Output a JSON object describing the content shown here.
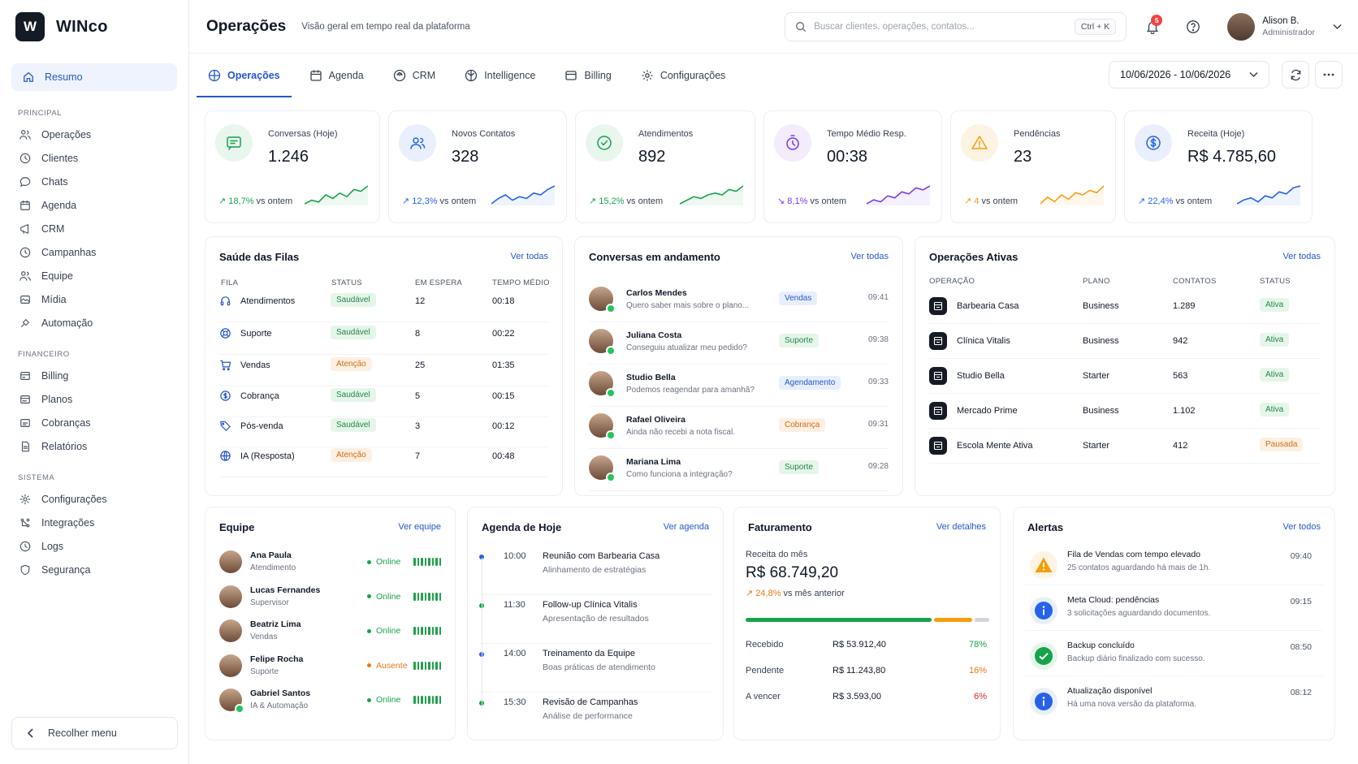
{
  "brand": {
    "logo_letter": "W",
    "name": "WINco"
  },
  "sidebar": {
    "active": "Resumo",
    "sections": [
      {
        "title": "PRINCIPAL",
        "items": [
          "Operações",
          "Clientes",
          "Chats",
          "Agenda",
          "CRM",
          "Campanhas",
          "Equipe",
          "Mídia",
          "Automação"
        ]
      },
      {
        "title": "FINANCEIRO",
        "items": [
          "Billing",
          "Planos",
          "Cobranças",
          "Relatórios"
        ]
      },
      {
        "title": "SISTEMA",
        "items": [
          "Configurações",
          "Integrações",
          "Logs",
          "Segurança"
        ]
      }
    ],
    "collapse_label": "Recolher menu"
  },
  "header": {
    "title": "Operações",
    "subtitle": "Visão geral em tempo real da plataforma",
    "search_placeholder": "Buscar clientes, operações, contatos...",
    "shortcut": "Ctrl + K",
    "notif_count": "5",
    "user_name": "Alison B.",
    "user_role": "Administrador"
  },
  "tabs": [
    "Operações",
    "Agenda",
    "CRM",
    "Intelligence",
    "Billing",
    "Configurações"
  ],
  "date_range": "10/06/2026 - 10/06/2026",
  "kpis": [
    {
      "label": "Conversas (Hoje)",
      "value": "1.246",
      "change": "18,7%",
      "vs": "vs ontem",
      "color": "#16a34a",
      "bg": "#e9f6ee",
      "icon": "chat-icon",
      "dir": "up",
      "spark": [
        4,
        6,
        5,
        9,
        7,
        10,
        8,
        12,
        11,
        14
      ]
    },
    {
      "label": "Novos Contatos",
      "value": "328",
      "change": "12,3%",
      "vs": "vs ontem",
      "color": "#2563eb",
      "bg": "#e9effc",
      "icon": "users-icon",
      "dir": "up",
      "spark": [
        3,
        6,
        8,
        5,
        7,
        6,
        9,
        8,
        11,
        13
      ]
    },
    {
      "label": "Atendimentos",
      "value": "892",
      "change": "15,2%",
      "vs": "vs ontem",
      "color": "#16a34a",
      "bg": "#e9f6ee",
      "icon": "check-circle-icon",
      "dir": "up",
      "spark": [
        3,
        5,
        7,
        6,
        8,
        9,
        8,
        11,
        10,
        13
      ]
    },
    {
      "label": "Tempo Médio Resp.",
      "value": "00:38",
      "change": "8,1%",
      "vs": "vs ontem",
      "color": "#7c3aed",
      "bg": "#f2ecfd",
      "icon": "clock-icon",
      "dir": "down",
      "spark": [
        4,
        6,
        5,
        8,
        7,
        10,
        9,
        12,
        11,
        13
      ]
    },
    {
      "label": "Pendências",
      "value": "23",
      "change": "4",
      "vs": "vs ontem",
      "color": "#f59e0b",
      "bg": "#fdf3e2",
      "icon": "warning-icon",
      "dir": "up",
      "spark": [
        4,
        7,
        5,
        8,
        6,
        9,
        8,
        10,
        9,
        12
      ]
    },
    {
      "label": "Receita (Hoje)",
      "value": "R$ 4.785,60",
      "change": "22,4%",
      "vs": "vs ontem",
      "color": "#2563eb",
      "bg": "#e9effc",
      "icon": "dollar-icon",
      "dir": "up",
      "spark": [
        3,
        5,
        6,
        4,
        7,
        6,
        9,
        8,
        11,
        12
      ]
    }
  ],
  "queues": {
    "title": "Saúde das Filas",
    "link": "Ver todas",
    "headers": [
      "FILA",
      "STATUS",
      "EM ESPERA",
      "TEMPO MÉDIO"
    ],
    "rows": [
      {
        "name": "Atendimentos",
        "status": "Saudável",
        "wait": "12",
        "time": "00:18",
        "icon": "headset-icon"
      },
      {
        "name": "Suporte",
        "status": "Saudável",
        "wait": "8",
        "time": "00:22",
        "icon": "lifebuoy-icon"
      },
      {
        "name": "Vendas",
        "status": "Atenção",
        "wait": "25",
        "time": "01:35",
        "icon": "cart-icon"
      },
      {
        "name": "Cobrança",
        "status": "Saudável",
        "wait": "5",
        "time": "00:15",
        "icon": "dollar-icon"
      },
      {
        "name": "Pós-venda",
        "status": "Saudável",
        "wait": "3",
        "time": "00:12",
        "icon": "tag-icon"
      },
      {
        "name": "IA (Resposta)",
        "status": "Atenção",
        "wait": "7",
        "time": "00:48",
        "icon": "globe-icon"
      }
    ]
  },
  "conversations": {
    "title": "Conversas em andamento",
    "link": "Ver todas",
    "rows": [
      {
        "name": "Carlos Mendes",
        "msg": "Quero saber mais sobre o plano...",
        "tag": "Vendas",
        "tone": "blue",
        "time": "09:41"
      },
      {
        "name": "Juliana Costa",
        "msg": "Conseguiu atualizar meu pedido?",
        "tag": "Suporte",
        "tone": "green",
        "time": "09:38"
      },
      {
        "name": "Studio Bella",
        "msg": "Podemos reagendar para amanhã?",
        "tag": "Agendamento",
        "tone": "blue",
        "time": "09:33"
      },
      {
        "name": "Rafael Oliveira",
        "msg": "Ainda não recebi a nota fiscal.",
        "tag": "Cobrança",
        "tone": "orange",
        "time": "09:31"
      },
      {
        "name": "Mariana Lima",
        "msg": "Como funciona a integração?",
        "tag": "Suporte",
        "tone": "green",
        "time": "09:28"
      }
    ]
  },
  "operations": {
    "title": "Operações Ativas",
    "link": "Ver todas",
    "headers": [
      "OPERAÇÃO",
      "PLANO",
      "CONTATOS",
      "STATUS"
    ],
    "rows": [
      {
        "name": "Barbearia Casa",
        "plan": "Business",
        "contacts": "1.289",
        "status": "Ativa",
        "tone": "green"
      },
      {
        "name": "Clínica Vitalis",
        "plan": "Business",
        "contacts": "942",
        "status": "Ativa",
        "tone": "green"
      },
      {
        "name": "Studio Bella",
        "plan": "Starter",
        "contacts": "563",
        "status": "Ativa",
        "tone": "green"
      },
      {
        "name": "Mercado Prime",
        "plan": "Business",
        "contacts": "1.102",
        "status": "Ativa",
        "tone": "green"
      },
      {
        "name": "Escola Mente Ativa",
        "plan": "Starter",
        "contacts": "412",
        "status": "Pausada",
        "tone": "orange"
      }
    ]
  },
  "team": {
    "title": "Equipe",
    "link": "Ver equipe",
    "rows": [
      {
        "name": "Ana Paula",
        "role": "Atendimento",
        "status": "Online",
        "color": "#16a34a"
      },
      {
        "name": "Lucas Fernandes",
        "role": "Supervisor",
        "status": "Online",
        "color": "#16a34a"
      },
      {
        "name": "Beatriz Lima",
        "role": "Vendas",
        "status": "Online",
        "color": "#16a34a"
      },
      {
        "name": "Felipe Rocha",
        "role": "Suporte",
        "status": "Ausente",
        "color": "#ea7a16"
      },
      {
        "name": "Gabriel Santos",
        "role": "IA & Automação",
        "status": "Online",
        "color": "#16a34a"
      }
    ]
  },
  "agenda": {
    "title": "Agenda de Hoje",
    "link": "Ver agenda",
    "rows": [
      {
        "time": "10:00",
        "title": "Reunião com Barbearia Casa",
        "desc": "Alinhamento de estratégias",
        "color": "#2563eb"
      },
      {
        "time": "11:30",
        "title": "Follow-up Clínica Vitalis",
        "desc": "Apresentação de resultados",
        "color": "#16a34a"
      },
      {
        "time": "14:00",
        "title": "Treinamento da Equipe",
        "desc": "Boas práticas de atendimento",
        "color": "#2563eb"
      },
      {
        "time": "15:30",
        "title": "Revisão de Campanhas",
        "desc": "Análise de performance",
        "color": "#16a34a"
      }
    ]
  },
  "billing": {
    "title": "Faturamento",
    "link": "Ver detalhes",
    "label": "Receita do mês",
    "value": "R$ 68.749,20",
    "change": "24,8%",
    "vs": "vs mês anterior",
    "segments": [
      {
        "pct": 0.78,
        "color": "#16a34a"
      },
      {
        "pct": 0.16,
        "color": "#f59e0b"
      },
      {
        "pct": 0.06,
        "color": "#d1d5db"
      }
    ],
    "rows": [
      {
        "label": "Recebido",
        "value": "R$ 53.912,40",
        "pct": "78%",
        "color": "#16a34a"
      },
      {
        "label": "Pendente",
        "value": "R$ 11.243,80",
        "pct": "16%",
        "color": "#ea7a16"
      },
      {
        "label": "A vencer",
        "value": "R$ 3.593,00",
        "pct": "6%",
        "color": "#dc2626"
      }
    ]
  },
  "alerts": {
    "title": "Alertas",
    "link": "Ver todos",
    "rows": [
      {
        "title": "Fila de Vendas com tempo elevado",
        "desc": "25 contatos aguardando há mais de 1h.",
        "time": "09:40",
        "kind": "warning"
      },
      {
        "title": "Meta Cloud: pendências",
        "desc": "3 solicitações aguardando documentos.",
        "time": "09:15",
        "kind": "info"
      },
      {
        "title": "Backup concluído",
        "desc": "Backup diário finalizado com sucesso.",
        "time": "08:50",
        "kind": "success"
      },
      {
        "title": "Atualização disponível",
        "desc": "Há uma nova versão da plataforma.",
        "time": "08:12",
        "kind": "info"
      }
    ]
  }
}
